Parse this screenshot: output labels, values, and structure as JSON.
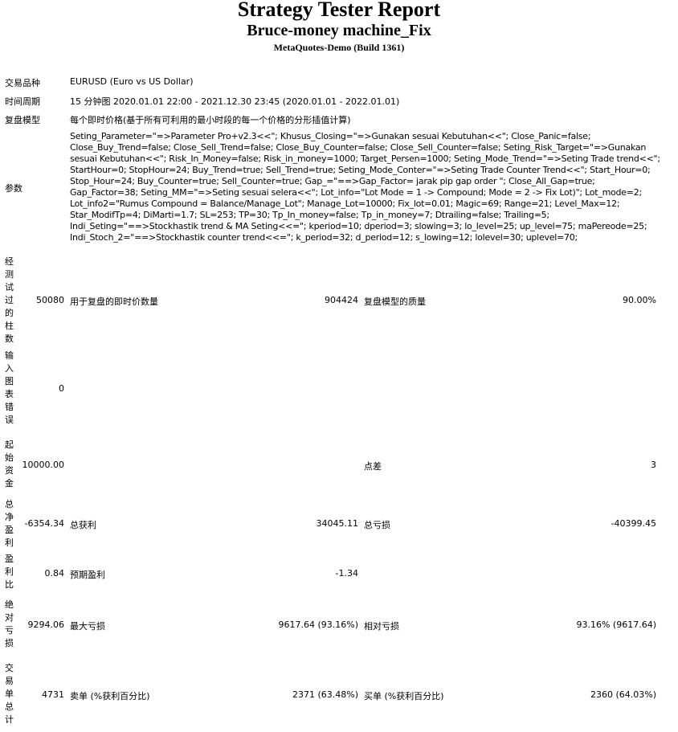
{
  "header": {
    "title": "Strategy Tester Report",
    "expert": "Bruce-money machine_Fix",
    "server": "MetaQuotes-Demo (Build 1361)"
  },
  "info": [
    {
      "label": "交易品种",
      "value": "EURUSD (Euro vs US Dollar)"
    },
    {
      "label": "时间周期",
      "value": "15 分钟图 2020.01.01 22:00 - 2021.12.30 23:45 (2020.01.01 - 2022.01.01)"
    },
    {
      "label": "复盘模型",
      "value": "每个即时价格(基于所有可利用的最小时段的每一个价格的分形插值计算)"
    },
    {
      "label": "参数",
      "value": "Seting_Parameter=\"=>Parameter Pro+v2.3<<\"; Khusus_Closing=\"=>Gunakan sesuai Kebutuhan<<\"; Close_Panic=false; Close_Buy_Trend=false; Close_Sell_Trend=false; Close_Buy_Counter=false; Close_Sell_Counter=false; Seting_Risk_Target=\"=>Gunakan sesuai Kebutuhan<<\"; Risk_In_Money=false; Risk_in_money=1000; Target_Persen=1000; Seting_Mode_Trend=\"=>Seting Trade trend<<\"; StartHour=0; StopHour=24; Buy_Trend=true; Sell_Trend=true; Seting_Mode_Conter=\"=>Seting Trade Counter Trend<<\"; Start_Hour=0; Stop_Hour=24; Buy_Counter=true; Sell_Counter=true; Gap_=\"==>Gap_Factor= jarak pip gap order \"; Close_All_Gap=true; Gap_Factor=38; Seting_MM=\"=>Seting sesuai selera<<\"; Lot_info=\"Lot Mode = 1 -> Compound; Mode = 2 -> Fix Lot)\"; Lot_mode=2; Lot_info2=\"Rumus Compound = Balance/Manage_Lot\"; Manage_Lot=10000; Fix_lot=0.01; Magic=69; Range=21; Level_Max=12; Star_ModifTp=4; DiMarti=1.7; SL=253; TP=30; Tp_In_money=false; Tp_in_money=7; Dtrailing=false; Trailing=5; Indi_Seting=\"==>Stockhastik trend & MA Seting<<=\"; kperiod=10; dperiod=3; slowing=3; lo_level=25; up_level=75; maPereode=25; Indi_Stoch_2=\"==>Stockhastik counter trend<<=\"; k_period=32; d_period=12; s_lowing=12; lolevel=30; uplevel=70;"
    }
  ],
  "stats": [
    {
      "label": "经测试过的柱数",
      "value": "50080",
      "label2": "用于复盘的即时价数量",
      "value2": "904424",
      "label3": "复盘模型的质量",
      "value3": "90.00%"
    },
    {
      "label": "输入图表错误",
      "value": "0",
      "label2": "",
      "value2": "",
      "label3": "",
      "value3": ""
    },
    {
      "label": "起始资金",
      "value": "10000.00",
      "label2": "",
      "value2": "",
      "label3": "点差",
      "value3": "3"
    },
    {
      "label": "总净盈利",
      "value": "-6354.34",
      "label2": "总获利",
      "value2": "34045.11",
      "label3": "总亏损",
      "value3": "-40399.45"
    },
    {
      "label": "盈利比",
      "value": "0.84",
      "label2": "预期盈利",
      "value2": "-1.34",
      "label3": "",
      "value3": ""
    },
    {
      "label": "绝对亏损",
      "value": "9294.06",
      "label2": "最大亏损",
      "value2": "9617.64 (93.16%)",
      "label3": "相对亏损",
      "value3": "93.16% (9617.64)"
    },
    {
      "label": "交易单总计",
      "value": "4731",
      "label2": "卖单 (%获利百分比)",
      "value2": "2371 (63.48%)",
      "label3": "买单 (%获利百分比)",
      "value3": "2360 (64.03%)"
    }
  ]
}
